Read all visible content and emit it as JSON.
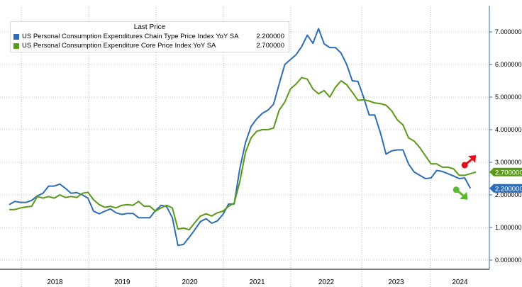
{
  "chart_data": {
    "type": "line",
    "x_tick_labels": [
      "2018",
      "2019",
      "2020",
      "2021",
      "2022",
      "2023",
      "2024"
    ],
    "y_tick_labels": [
      "0.000000",
      "1.000000",
      "2.000000",
      "3.000000",
      "4.000000",
      "5.000000",
      "6.000000",
      "7.000000"
    ],
    "ylim": [
      -0.2,
      7.8
    ],
    "grid": "horizontal dotted",
    "legend_header": "Last Price",
    "series": [
      {
        "name": "US Personal Consumption Expenditures Chain Type Price Index YoY SA",
        "last_value": "2.200000",
        "color": "#2e6db4",
        "arrow": "down",
        "arrow_color": "#5cb82e",
        "values": [
          1.7,
          1.8,
          1.77,
          1.77,
          1.83,
          1.97,
          2.05,
          2.27,
          2.27,
          2.33,
          2.2,
          2.05,
          2.07,
          2.0,
          1.9,
          1.5,
          1.42,
          1.5,
          1.57,
          1.45,
          1.4,
          1.43,
          1.43,
          1.3,
          1.3,
          1.3,
          1.52,
          1.68,
          1.64,
          1.3,
          0.45,
          0.48,
          0.7,
          0.93,
          1.18,
          1.27,
          1.13,
          1.2,
          1.4,
          1.72,
          1.72,
          2.8,
          3.6,
          4.1,
          4.33,
          4.5,
          4.6,
          4.78,
          5.4,
          6.0,
          6.15,
          6.3,
          6.55,
          6.9,
          6.65,
          7.1,
          6.63,
          6.52,
          6.52,
          6.35,
          6.0,
          5.5,
          5.48,
          5.0,
          4.45,
          4.45,
          3.9,
          3.25,
          3.35,
          3.38,
          3.38,
          2.95,
          2.7,
          2.6,
          2.5,
          2.52,
          2.75,
          2.72,
          2.65,
          2.58,
          2.5,
          2.52,
          2.2
        ]
      },
      {
        "name": "US Personal Consumption Expenditure Core Price Index YoY SA",
        "last_value": "2.700000",
        "color": "#5a9a16",
        "arrow": "up",
        "arrow_color": "#e0111b",
        "values": [
          1.55,
          1.55,
          1.6,
          1.63,
          1.65,
          1.95,
          1.9,
          1.95,
          1.9,
          2.0,
          1.92,
          1.95,
          1.92,
          2.05,
          2.08,
          1.85,
          1.7,
          1.62,
          1.65,
          1.6,
          1.68,
          1.7,
          1.68,
          1.8,
          1.65,
          1.65,
          1.5,
          1.6,
          1.68,
          1.6,
          0.95,
          0.98,
          0.93,
          1.15,
          1.35,
          1.42,
          1.35,
          1.45,
          1.5,
          1.65,
          1.75,
          2.4,
          3.3,
          3.75,
          3.95,
          4.0,
          4.0,
          4.05,
          4.6,
          4.85,
          5.25,
          5.4,
          5.6,
          5.55,
          5.25,
          5.1,
          5.2,
          5.0,
          5.3,
          5.5,
          5.38,
          5.15,
          4.9,
          4.92,
          4.88,
          4.82,
          4.8,
          4.75,
          4.58,
          4.3,
          4.15,
          3.75,
          3.65,
          3.45,
          3.2,
          2.95,
          2.95,
          2.85,
          2.85,
          2.8,
          2.6,
          2.6,
          2.65,
          2.7
        ]
      }
    ]
  }
}
